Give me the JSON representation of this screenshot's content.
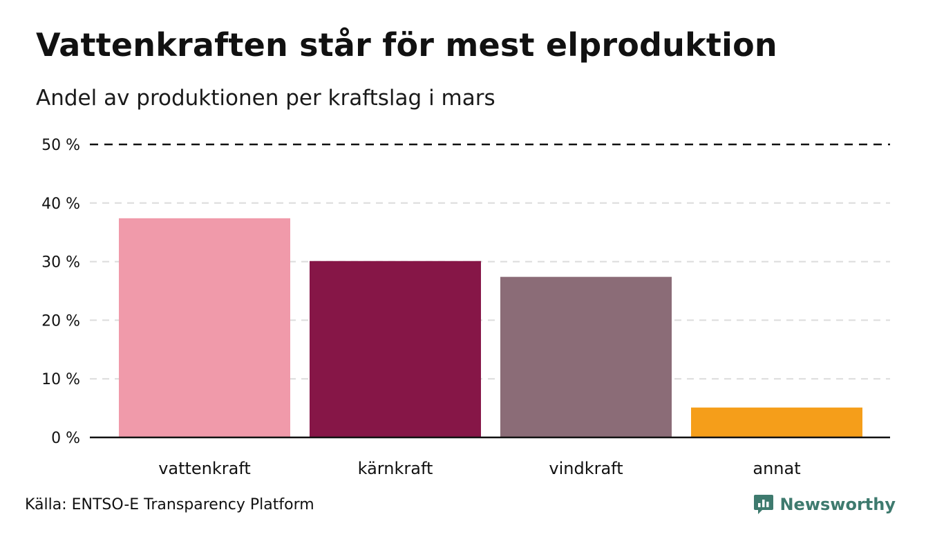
{
  "title": "Vattenkraften står för mest elproduktion",
  "subtitle": "Andel av produktionen per kraftslag i mars",
  "source": "Källa: ENTSO-E Transparency Platform",
  "brand": {
    "name": "Newsworthy",
    "color": "#3e7a6e"
  },
  "chart_data": {
    "type": "bar",
    "categories": [
      "vattenkraft",
      "kärnkraft",
      "vindkraft",
      "annat"
    ],
    "values": [
      37.4,
      30.1,
      27.4,
      5.1
    ],
    "colors": [
      "#f09aaa",
      "#861647",
      "#8b6c77",
      "#f59e1a"
    ],
    "yticks": [
      "0 %",
      "10 %",
      "20 %",
      "30 %",
      "40 %",
      "50 %"
    ],
    "ylim": [
      0,
      50
    ],
    "grid": true,
    "reference_line": 50
  }
}
